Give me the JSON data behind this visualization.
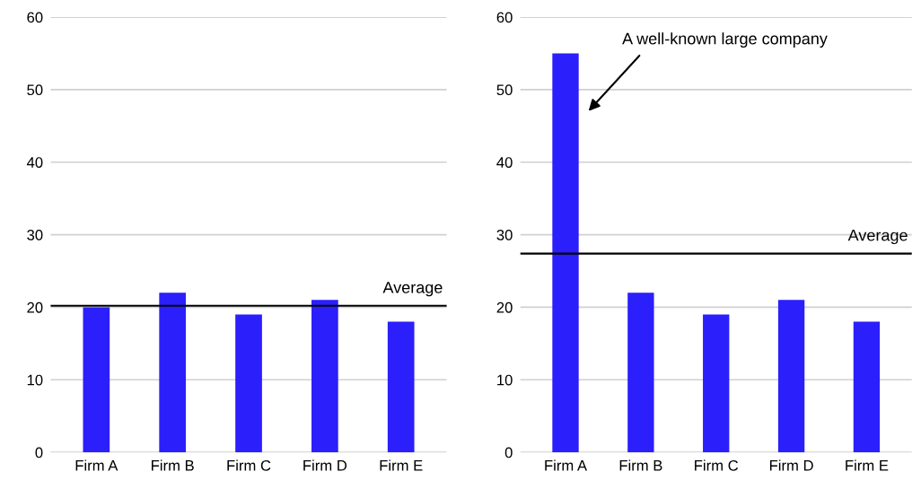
{
  "chart_data": [
    {
      "type": "bar",
      "categories": [
        "Firm A",
        "Firm B",
        "Firm C",
        "Firm D",
        "Firm E"
      ],
      "values": [
        20,
        22,
        19,
        21,
        18
      ],
      "color": "#2b1ffb",
      "ylim": [
        0,
        60
      ],
      "yticks": [
        0,
        10,
        20,
        30,
        40,
        50,
        60
      ],
      "grid": "y",
      "ref_lines": [
        {
          "axis": "y",
          "value": 20.2,
          "label": "Average",
          "color": "#000000",
          "line_style": "solid"
        }
      ]
    },
    {
      "type": "bar",
      "categories": [
        "Firm A",
        "Firm B",
        "Firm C",
        "Firm D",
        "Firm E"
      ],
      "values": [
        55,
        22,
        19,
        21,
        18
      ],
      "color": "#2b1ffb",
      "ylim": [
        0,
        60
      ],
      "yticks": [
        0,
        10,
        20,
        30,
        40,
        50,
        60
      ],
      "grid": "y",
      "ref_lines": [
        {
          "axis": "y",
          "value": 27.4,
          "label": "Average",
          "color": "#000000",
          "line_style": "solid"
        }
      ],
      "annotations": [
        "A well-known large company"
      ]
    }
  ]
}
